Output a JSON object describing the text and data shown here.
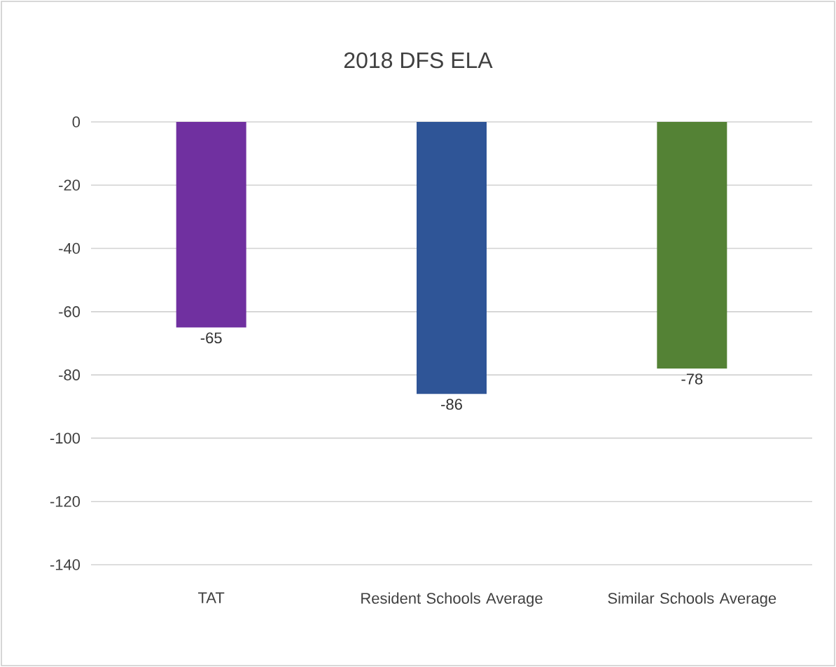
{
  "chart_data": {
    "type": "bar",
    "title": "2018 DFS ELA",
    "categories": [
      "TAT",
      "Resident Schools Average",
      "Similar Schools Average"
    ],
    "values": [
      -65,
      -86,
      -78
    ],
    "value_labels": [
      "-65",
      "-86",
      "-78"
    ],
    "colors": [
      "#7030a0",
      "#2f5597",
      "#548235"
    ],
    "ylim": [
      -140,
      0
    ],
    "yticks": [
      -140,
      -120,
      -100,
      -80,
      -60,
      -40,
      -20,
      0
    ],
    "grid": "y"
  }
}
